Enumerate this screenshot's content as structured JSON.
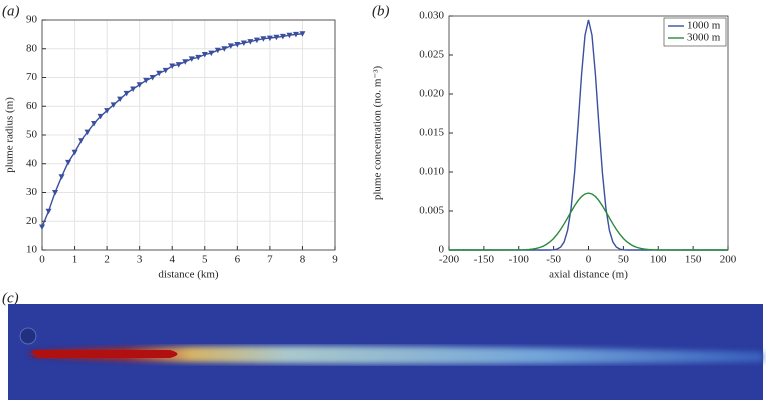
{
  "chart_data": [
    {
      "type": "line",
      "panel_label": "(a)",
      "x_label": "distance (km)",
      "y_label": "plume radius (m)",
      "x": [
        0,
        0.2,
        0.4,
        0.6,
        0.8,
        1,
        1.2,
        1.4,
        1.6,
        1.8,
        2,
        2.2,
        2.4,
        2.6,
        2.8,
        3,
        3.2,
        3.4,
        3.6,
        3.8,
        4,
        4.2,
        4.4,
        4.6,
        4.8,
        5,
        5.2,
        5.4,
        5.6,
        5.8,
        6,
        6.2,
        6.4,
        6.6,
        6.8,
        7,
        7.2,
        7.4,
        7.6,
        7.8,
        8
      ],
      "series": [
        {
          "color": "#3a4f9e",
          "marker": "triangle-down",
          "values": [
            18,
            23.5,
            30,
            35.5,
            40.5,
            44,
            48,
            51,
            54,
            56.5,
            58.5,
            60.5,
            62.5,
            64.5,
            66,
            67.5,
            69,
            70,
            71.5,
            72.5,
            74,
            74.5,
            75.5,
            76.5,
            77,
            78,
            78.5,
            79.5,
            80,
            81,
            81.5,
            82,
            82.5,
            83,
            83.5,
            83.7,
            84,
            84.3,
            84.7,
            85,
            85.2
          ]
        }
      ],
      "xlim": [
        0,
        9
      ],
      "xticks": [
        0,
        1,
        2,
        3,
        4,
        5,
        6,
        7,
        8,
        9
      ],
      "ylim": [
        10,
        90
      ],
      "yticks": [
        10,
        20,
        30,
        40,
        50,
        60,
        70,
        80,
        90
      ],
      "grid": true
    },
    {
      "type": "line",
      "panel_label": "(b)",
      "x_label": "axial distance (m)",
      "y_label": "plume concentration (no. m⁻³)",
      "x": [
        -200,
        -150,
        -100,
        -95,
        -90,
        -85,
        -80,
        -75,
        -70,
        -65,
        -60,
        -55,
        -50,
        -45,
        -40,
        -35,
        -30,
        -25,
        -20,
        -15,
        -10,
        -5,
        0,
        5,
        10,
        15,
        20,
        25,
        30,
        35,
        40,
        45,
        50,
        55,
        60,
        65,
        70,
        75,
        80,
        85,
        90,
        95,
        100,
        150,
        200
      ],
      "series": [
        {
          "name": "1000 m",
          "color": "#3a4f9e",
          "values": [
            0,
            0,
            0,
            0,
            0,
            0,
            0,
            0,
            0,
            0,
            0,
            0,
            3e-05,
            0.00011,
            0.00037,
            0.00102,
            0.0025,
            0.00531,
            0.00984,
            0.01591,
            0.02242,
            0.02754,
            0.0295,
            0.02754,
            0.02242,
            0.01591,
            0.00984,
            0.00531,
            0.0025,
            0.00102,
            0.00037,
            0.00011,
            3e-05,
            0,
            0,
            0,
            0,
            0,
            0,
            0,
            0,
            0,
            0,
            0,
            0
          ]
        },
        {
          "name": "3000 m",
          "color": "#2a8a3a",
          "values": [
            0,
            0,
            1e-05,
            2e-05,
            4e-05,
            7e-05,
            0.00012,
            0.0002,
            0.00032,
            0.00049,
            0.00074,
            0.00106,
            0.00148,
            0.00201,
            0.00263,
            0.00334,
            0.00411,
            0.0049,
            0.00566,
            0.00632,
            0.00685,
            0.00718,
            0.0073,
            0.00718,
            0.00685,
            0.00632,
            0.00566,
            0.0049,
            0.00411,
            0.00334,
            0.00263,
            0.00201,
            0.00148,
            0.00106,
            0.00074,
            0.00049,
            0.00032,
            0.0002,
            0.00012,
            7e-05,
            4e-05,
            2e-05,
            1e-05,
            0,
            0
          ]
        }
      ],
      "xlim": [
        -200,
        200
      ],
      "xticks": [
        -200,
        -150,
        -100,
        -50,
        0,
        50,
        100,
        150,
        200
      ],
      "ylim": [
        0,
        0.03
      ],
      "yticks": [
        0,
        0.005,
        {
          "value": 0.01,
          "label": "0.010"
        },
        0.015,
        {
          "value": 0.02,
          "label": "0.020"
        },
        0.025,
        {
          "value": 0.03,
          "label": "0.030"
        }
      ],
      "grid": false,
      "legend": "top-right"
    }
  ],
  "image_panel": {
    "label": "(c)"
  }
}
